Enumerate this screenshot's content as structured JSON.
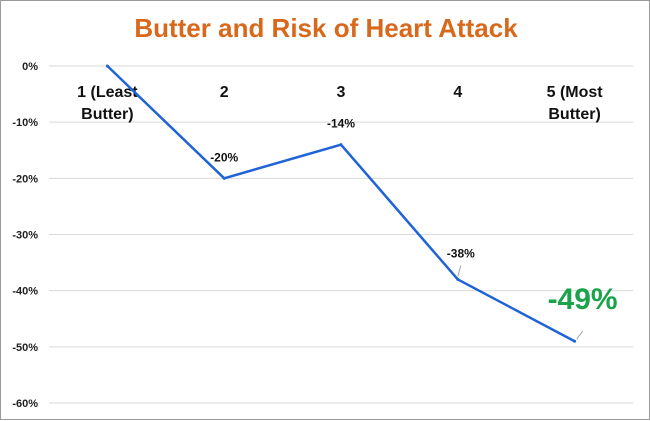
{
  "chart_data": {
    "type": "line",
    "title": "Butter and Risk of Heart Attack",
    "categories": [
      "1 (Least Butter)",
      "2",
      "3",
      "4",
      "5 (Most Butter)"
    ],
    "category_lines": [
      [
        "1 (Least",
        "Butter)"
      ],
      [
        "2"
      ],
      [
        "3"
      ],
      [
        "4"
      ],
      [
        "5 (Most",
        "Butter)"
      ]
    ],
    "series": [
      {
        "values": [
          0,
          -20,
          -14,
          -38,
          -49
        ]
      }
    ],
    "data_labels": [
      "",
      "-20%",
      "-14%",
      "-38%",
      "-49%"
    ],
    "highlight_index": 4,
    "ylim": [
      -60,
      0
    ],
    "yticks": [
      0,
      -10,
      -20,
      -30,
      -40,
      -50,
      -60
    ],
    "ytick_labels": [
      "0%",
      "-10%",
      "-20%",
      "-30%",
      "-40%",
      "-50%",
      "-60%"
    ],
    "xlabel": "",
    "ylabel": "",
    "grid": true,
    "colors": {
      "title": "#d8691c",
      "line": "#1f63d8",
      "grid": "#d9d9d9",
      "highlight": "#1aa34a",
      "leader": "#a6a6a6"
    }
  }
}
